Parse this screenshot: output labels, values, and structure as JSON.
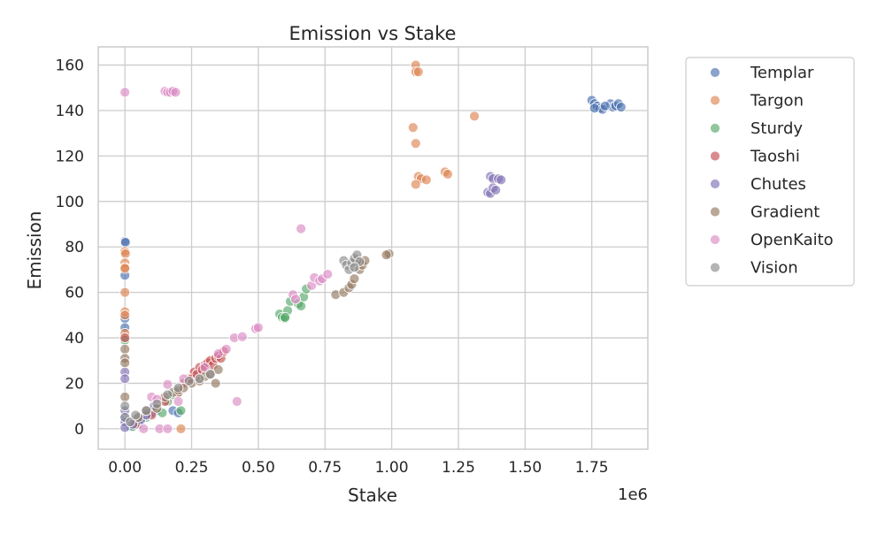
{
  "chart_data": {
    "type": "scatter",
    "title": "Emission vs Stake",
    "xlabel": "Stake",
    "ylabel": "Emission",
    "x_offset_label": "1e6",
    "xlim": [
      -0.1,
      1.96
    ],
    "ylim": [
      -9,
      168
    ],
    "x_ticks": [
      0.0,
      0.25,
      0.5,
      0.75,
      1.0,
      1.25,
      1.5,
      1.75
    ],
    "x_tick_labels": [
      "0.00",
      "0.25",
      "0.50",
      "0.75",
      "1.00",
      "1.25",
      "1.50",
      "1.75"
    ],
    "y_ticks": [
      0,
      20,
      40,
      60,
      80,
      100,
      120,
      140,
      160
    ],
    "y_tick_labels": [
      "0",
      "20",
      "40",
      "60",
      "80",
      "100",
      "120",
      "140",
      "160"
    ],
    "grid": true,
    "legend_position": "outside-right",
    "series": [
      {
        "name": "Templar",
        "color": "#4C72B0",
        "points": [
          [
            0.0,
            82.5
          ],
          [
            0.002,
            82
          ],
          [
            0.0,
            67.5
          ],
          [
            0.0,
            48.5
          ],
          [
            0.0,
            44.5
          ],
          [
            0.0,
            5
          ],
          [
            0.01,
            3
          ],
          [
            0.02,
            1
          ],
          [
            0.05,
            2
          ],
          [
            0.04,
            4
          ],
          [
            0.06,
            5
          ],
          [
            0.08,
            6
          ],
          [
            0.1,
            7
          ],
          [
            0.12,
            8
          ],
          [
            0.18,
            8
          ],
          [
            0.2,
            7
          ],
          [
            1.75,
            144.5
          ],
          [
            1.76,
            143
          ],
          [
            1.77,
            142
          ],
          [
            1.78,
            141
          ],
          [
            1.79,
            140.5
          ],
          [
            1.82,
            143
          ],
          [
            1.83,
            141.5
          ],
          [
            1.84,
            142
          ],
          [
            1.85,
            143
          ],
          [
            1.86,
            141.5
          ],
          [
            1.76,
            141
          ],
          [
            1.8,
            142
          ]
        ]
      },
      {
        "name": "Targon",
        "color": "#DD8452",
        "points": [
          [
            0.0,
            78
          ],
          [
            0.002,
            77
          ],
          [
            0.0,
            73
          ],
          [
            0.0,
            71
          ],
          [
            0.0,
            70.5
          ],
          [
            0.0,
            60
          ],
          [
            0.0,
            51.5
          ],
          [
            0.0,
            50
          ],
          [
            0.0,
            42
          ],
          [
            0.21,
            0
          ],
          [
            1.09,
            160
          ],
          [
            1.09,
            157
          ],
          [
            1.1,
            157
          ],
          [
            1.08,
            132.5
          ],
          [
            1.09,
            125.5
          ],
          [
            1.31,
            137.5
          ],
          [
            1.1,
            111
          ],
          [
            1.11,
            110
          ],
          [
            1.13,
            109.5
          ],
          [
            1.09,
            107.5
          ],
          [
            1.2,
            113
          ],
          [
            1.21,
            112
          ]
        ]
      },
      {
        "name": "Sturdy",
        "color": "#55A868",
        "points": [
          [
            0.0,
            39
          ],
          [
            0.03,
            1
          ],
          [
            0.05,
            3
          ],
          [
            0.08,
            5
          ],
          [
            0.12,
            10
          ],
          [
            0.14,
            7
          ],
          [
            0.16,
            12
          ],
          [
            0.18,
            15
          ],
          [
            0.2,
            16
          ],
          [
            0.21,
            8
          ],
          [
            0.58,
            50.5
          ],
          [
            0.59,
            49
          ],
          [
            0.6,
            48.5
          ],
          [
            0.61,
            52
          ],
          [
            0.62,
            56
          ],
          [
            0.65,
            55
          ],
          [
            0.66,
            54
          ],
          [
            0.67,
            58
          ],
          [
            0.68,
            61.5
          ],
          [
            0.6,
            49
          ]
        ]
      },
      {
        "name": "Taoshi",
        "color": "#C44E52",
        "points": [
          [
            0.0,
            40
          ],
          [
            0.04,
            2
          ],
          [
            0.1,
            6
          ],
          [
            0.15,
            12
          ],
          [
            0.2,
            16
          ],
          [
            0.22,
            20
          ],
          [
            0.24,
            22
          ],
          [
            0.26,
            25
          ],
          [
            0.28,
            27
          ],
          [
            0.3,
            28
          ],
          [
            0.31,
            29
          ],
          [
            0.32,
            30
          ],
          [
            0.33,
            28
          ],
          [
            0.34,
            31
          ],
          [
            0.35,
            32
          ],
          [
            0.36,
            31
          ],
          [
            0.37,
            34
          ],
          [
            0.25,
            22
          ],
          [
            0.27,
            24
          ],
          [
            0.29,
            26
          ]
        ]
      },
      {
        "name": "Chutes",
        "color": "#8172B3",
        "points": [
          [
            0.0,
            25
          ],
          [
            0.0,
            22
          ],
          [
            0.0,
            8
          ],
          [
            0.0,
            3
          ],
          [
            0.0,
            0.5
          ],
          [
            0.03,
            2
          ],
          [
            0.06,
            4
          ],
          [
            0.08,
            6
          ],
          [
            0.11,
            10
          ],
          [
            1.37,
            111
          ],
          [
            1.38,
            110
          ],
          [
            1.36,
            104
          ],
          [
            1.37,
            103.5
          ],
          [
            1.38,
            106
          ],
          [
            1.4,
            110
          ],
          [
            1.41,
            109.5
          ],
          [
            1.39,
            105
          ]
        ]
      },
      {
        "name": "Gradient",
        "color": "#937860",
        "points": [
          [
            0.0,
            35
          ],
          [
            0.0,
            31
          ],
          [
            0.0,
            29
          ],
          [
            0.0,
            14
          ],
          [
            0.05,
            5
          ],
          [
            0.08,
            8
          ],
          [
            0.12,
            9
          ],
          [
            0.15,
            14
          ],
          [
            0.18,
            16
          ],
          [
            0.2,
            17
          ],
          [
            0.22,
            18
          ],
          [
            0.25,
            20
          ],
          [
            0.28,
            21
          ],
          [
            0.3,
            23
          ],
          [
            0.32,
            24
          ],
          [
            0.35,
            26
          ],
          [
            0.34,
            20
          ],
          [
            0.79,
            59
          ],
          [
            0.82,
            60
          ],
          [
            0.84,
            62
          ],
          [
            0.85,
            63.5
          ],
          [
            0.86,
            66
          ],
          [
            0.88,
            70
          ],
          [
            0.89,
            72
          ],
          [
            0.9,
            74
          ],
          [
            0.99,
            77
          ],
          [
            0.98,
            76.5
          ],
          [
            0.87,
            74
          ]
        ]
      },
      {
        "name": "OpenKaito",
        "color": "#DA8BC3",
        "points": [
          [
            0.0,
            148
          ],
          [
            0.15,
            148.5
          ],
          [
            0.16,
            148
          ],
          [
            0.17,
            148
          ],
          [
            0.18,
            148.5
          ],
          [
            0.19,
            148
          ],
          [
            0.66,
            88
          ],
          [
            0.1,
            14
          ],
          [
            0.12,
            13
          ],
          [
            0.16,
            19.5
          ],
          [
            0.2,
            12
          ],
          [
            0.22,
            22
          ],
          [
            0.3,
            27
          ],
          [
            0.35,
            33
          ],
          [
            0.38,
            35
          ],
          [
            0.41,
            40
          ],
          [
            0.44,
            40.5
          ],
          [
            0.49,
            44
          ],
          [
            0.5,
            44.5
          ],
          [
            0.63,
            59
          ],
          [
            0.64,
            57
          ],
          [
            0.7,
            63
          ],
          [
            0.71,
            66.5
          ],
          [
            0.73,
            65
          ],
          [
            0.74,
            66
          ],
          [
            0.76,
            68
          ],
          [
            0.42,
            12
          ],
          [
            0.13,
            0
          ],
          [
            0.16,
            0
          ],
          [
            0.07,
            0
          ]
        ]
      },
      {
        "name": "Vision",
        "color": "#8C8C8C",
        "points": [
          [
            0.0,
            10
          ],
          [
            0.0,
            5
          ],
          [
            0.02,
            3
          ],
          [
            0.04,
            6
          ],
          [
            0.08,
            8
          ],
          [
            0.12,
            11
          ],
          [
            0.16,
            15
          ],
          [
            0.2,
            18
          ],
          [
            0.24,
            21
          ],
          [
            0.28,
            22
          ],
          [
            0.32,
            24
          ],
          [
            0.82,
            74
          ],
          [
            0.83,
            72
          ],
          [
            0.84,
            70
          ],
          [
            0.85,
            73
          ],
          [
            0.86,
            75
          ],
          [
            0.87,
            76.5
          ],
          [
            0.88,
            73.5
          ],
          [
            0.86,
            71
          ]
        ]
      }
    ]
  }
}
